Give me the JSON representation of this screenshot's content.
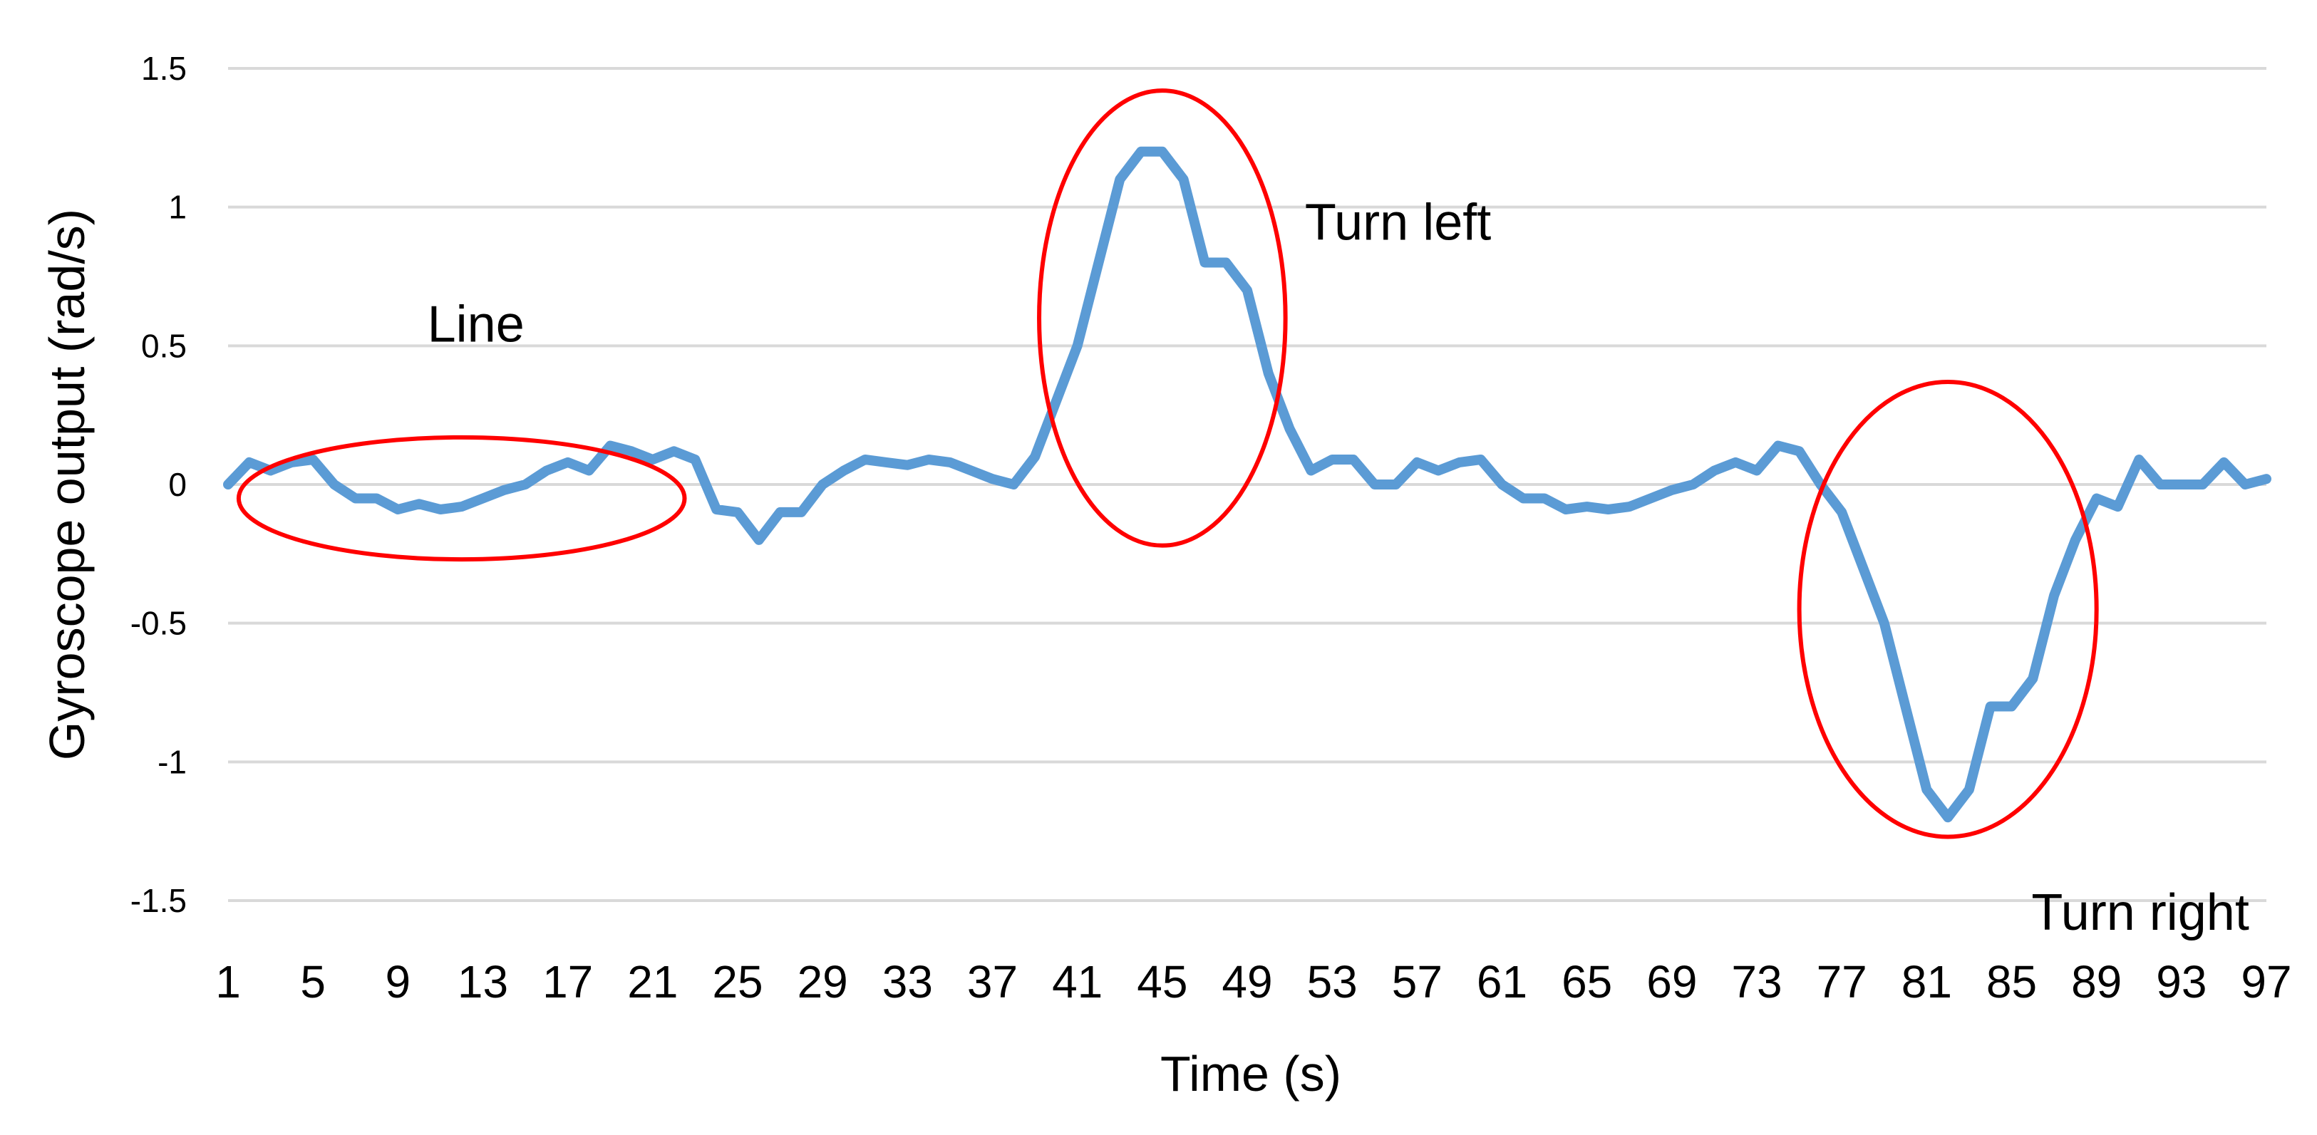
{
  "chart_data": {
    "type": "line",
    "xlabel": "Time (s)",
    "ylabel": "Gyroscope output (rad/s)",
    "ylim": [
      -1.5,
      1.5
    ],
    "yticks": [
      "1.5",
      "1",
      "0.5",
      "0",
      "-0.5",
      "-1",
      "-1.5"
    ],
    "xticks": [
      "1",
      "5",
      "9",
      "13",
      "17",
      "21",
      "25",
      "29",
      "33",
      "37",
      "41",
      "45",
      "49",
      "53",
      "57",
      "61",
      "65",
      "69",
      "73",
      "77",
      "81",
      "85",
      "89",
      "93",
      "97"
    ],
    "grid": true,
    "x": [
      1,
      2,
      3,
      4,
      5,
      6,
      7,
      8,
      9,
      10,
      11,
      12,
      13,
      14,
      15,
      16,
      17,
      18,
      19,
      20,
      21,
      22,
      23,
      24,
      25,
      26,
      27,
      28,
      29,
      30,
      31,
      32,
      33,
      34,
      35,
      36,
      37,
      38,
      39,
      40,
      41,
      42,
      43,
      44,
      45,
      46,
      47,
      48,
      49,
      50,
      51,
      52,
      53,
      54,
      55,
      56,
      57,
      58,
      59,
      60,
      61,
      62,
      63,
      64,
      65,
      66,
      67,
      68,
      69,
      70,
      71,
      72,
      73,
      74,
      75,
      76,
      77,
      78,
      79,
      80,
      81,
      82,
      83,
      84,
      85,
      86,
      87,
      88,
      89,
      90,
      91,
      92,
      93,
      94,
      95,
      96,
      97
    ],
    "series": [
      {
        "color": "#5b9bd5",
        "values": [
          0.0,
          0.08,
          0.05,
          0.08,
          0.09,
          0.0,
          -0.05,
          -0.05,
          -0.09,
          -0.07,
          -0.09,
          -0.08,
          -0.05,
          -0.02,
          0.0,
          0.05,
          0.08,
          0.05,
          0.14,
          0.12,
          0.09,
          0.12,
          0.09,
          -0.09,
          -0.1,
          -0.2,
          -0.1,
          -0.1,
          0.0,
          0.05,
          0.09,
          0.08,
          0.07,
          0.09,
          0.08,
          0.05,
          0.02,
          0.0,
          0.1,
          0.3,
          0.5,
          0.8,
          1.1,
          1.2,
          1.2,
          1.1,
          0.8,
          0.8,
          0.7,
          0.4,
          0.2,
          0.05,
          0.09,
          0.09,
          0.0,
          0.0,
          0.08,
          0.05,
          0.08,
          0.09,
          0.0,
          -0.05,
          -0.05,
          -0.09,
          -0.08,
          -0.09,
          -0.08,
          -0.05,
          -0.02,
          0.0,
          0.05,
          0.08,
          0.05,
          0.14,
          0.12,
          0.0,
          -0.1,
          -0.3,
          -0.5,
          -0.8,
          -1.1,
          -1.2,
          -1.1,
          -0.8,
          -0.8,
          -0.7,
          -0.4,
          -0.2,
          -0.05,
          -0.08,
          0.09,
          0.0,
          0.0,
          0.0,
          0.08,
          0.0,
          0.02
        ]
      }
    ],
    "annotations": [
      {
        "text": "Line",
        "x_center": 12,
        "y_center": -0.05,
        "x_radius": 10.5,
        "y_radius": 0.22
      },
      {
        "text": "Turn left",
        "x_center": 45,
        "y_center": 0.6,
        "x_radius": 5.8,
        "y_radius": 0.82
      },
      {
        "text": "Turn right",
        "x_center": 82,
        "y_center": -0.45,
        "x_radius": 7.0,
        "y_radius": 0.82
      }
    ]
  }
}
